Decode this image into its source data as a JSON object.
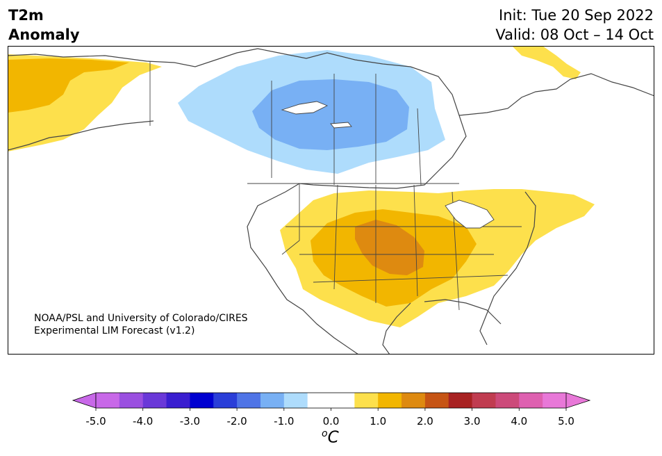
{
  "title": {
    "variable": "T2m",
    "subtitle": "Anomaly",
    "init": "Init: Tue 20 Sep 2022",
    "valid": "Valid: 08 Oct – 14 Oct"
  },
  "credit": {
    "line1": "NOAA/PSL and University of Colorado/CIRES",
    "line2": "Experimental LIM Forecast (v1.2)"
  },
  "colorbar": {
    "ticks": [
      "-5.0",
      "-4.0",
      "-3.0",
      "-2.0",
      "-1.0",
      "0.0",
      "1.0",
      "2.0",
      "3.0",
      "4.0",
      "5.0"
    ],
    "colors": [
      "#c868e8",
      "#9a4fe0",
      "#6a38d8",
      "#3a1ed0",
      "#0000d0",
      "#2a3ed8",
      "#4f74e6",
      "#78b0f4",
      "#aedcfc",
      "#ffffff",
      "#ffffff",
      "#fde04c",
      "#f2b600",
      "#de8a10",
      "#c65414",
      "#a82222",
      "#c03c50",
      "#cc4a7a",
      "#de60b0",
      "#e878d8"
    ],
    "unit_base": "o",
    "unit_letter": "C"
  },
  "legend_colors": {
    "light_blue": "#aedcfc",
    "mid_blue": "#78b0f4",
    "yellow": "#fde04c",
    "orange": "#f2b600",
    "dark_orange": "#de8a10"
  }
}
